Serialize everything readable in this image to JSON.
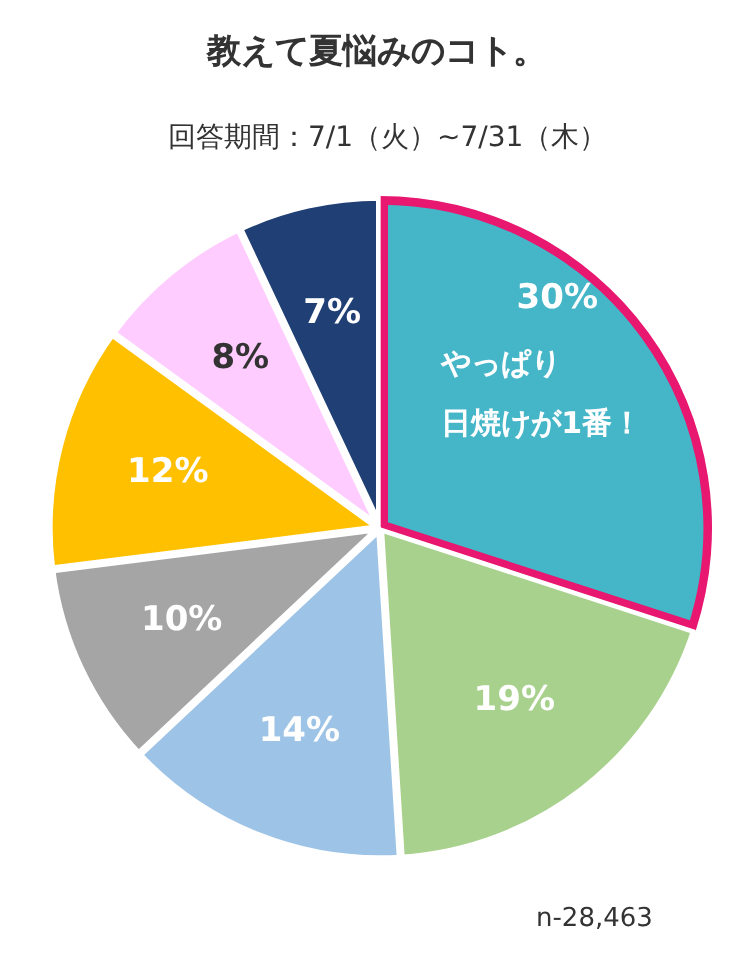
{
  "chart_data": {
    "type": "pie",
    "title": "教えて夏悩みのコト。",
    "subtitle": "回答期間：7/1（火）~7/31（木）",
    "categories": [
      null,
      null,
      null,
      null,
      null,
      null,
      null
    ],
    "values": [
      30,
      19,
      14,
      10,
      12,
      8,
      7
    ],
    "colors": [
      "#45b5c8",
      "#a9d18e",
      "#9dc3e6",
      "#a5a5a5",
      "#ffc000",
      "#ffccff",
      "#203f74"
    ],
    "value_labels": [
      "30%",
      "19%",
      "14%",
      "10%",
      "12%",
      "8%",
      "7%"
    ],
    "annotations": [
      "やっぱり",
      "日焼けが1番！",
      "n-28,463"
    ]
  }
}
